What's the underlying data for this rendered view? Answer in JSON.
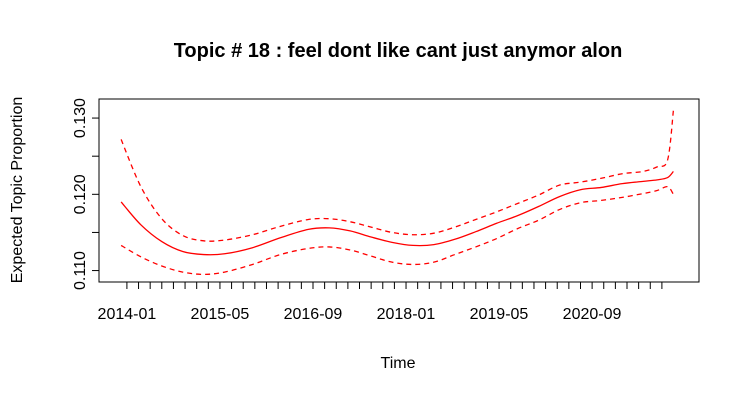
{
  "chart_data": {
    "type": "line",
    "title": "Topic # 18 :  feel dont like cant just anymor alon",
    "xlabel": "Time",
    "ylabel": "Expected Topic Proportion",
    "x_tick_labels": [
      "2014-01",
      "2015-05",
      "2016-09",
      "2018-01",
      "2019-05",
      "2020-09"
    ],
    "x_tick_positions": [
      2014.0,
      2015.333,
      2016.667,
      2018.0,
      2019.333,
      2020.667
    ],
    "y_ticks": [
      0.11,
      0.115,
      0.12,
      0.125,
      0.13
    ],
    "y_tick_labels": [
      "0.110",
      "",
      "0.120",
      "",
      "0.130"
    ],
    "xlim": [
      2013.6,
      2022.2
    ],
    "ylim": [
      0.1085,
      0.1325
    ],
    "minor_tick_interval_years": 0.1667,
    "minor_tick_start": 2014.0,
    "minor_tick_end": 2021.833,
    "colors": {
      "line": "#ff0000",
      "axis": "#000000"
    },
    "series": [
      {
        "role": "estimate",
        "line_style": "solid",
        "x": [
          2013.917,
          2014.2,
          2014.5,
          2014.8,
          2015.1,
          2015.4,
          2015.8,
          2016.2,
          2016.6,
          2016.9,
          2017.2,
          2017.5,
          2017.8,
          2018.1,
          2018.4,
          2018.7,
          2019.0,
          2019.3,
          2019.6,
          2019.9,
          2020.2,
          2020.5,
          2020.8,
          2021.1,
          2021.4,
          2021.6,
          2021.75,
          2021.833
        ],
        "y": [
          0.119,
          0.116,
          0.1138,
          0.1125,
          0.1121,
          0.1122,
          0.113,
          0.1143,
          0.1154,
          0.1156,
          0.1152,
          0.1144,
          0.1137,
          0.1133,
          0.1134,
          0.1141,
          0.1151,
          0.1162,
          0.1172,
          0.1184,
          0.1197,
          0.1206,
          0.1209,
          0.1214,
          0.1217,
          0.1219,
          0.1222,
          0.123
        ]
      },
      {
        "role": "upper",
        "line_style": "dashed",
        "x": [
          2013.917,
          2014.2,
          2014.5,
          2014.8,
          2015.1,
          2015.4,
          2015.8,
          2016.2,
          2016.6,
          2016.9,
          2017.2,
          2017.5,
          2017.8,
          2018.1,
          2018.4,
          2018.7,
          2019.0,
          2019.3,
          2019.6,
          2019.9,
          2020.2,
          2020.5,
          2020.8,
          2021.1,
          2021.4,
          2021.6,
          2021.75,
          2021.833
        ],
        "y": [
          0.1272,
          0.121,
          0.1168,
          0.1146,
          0.1139,
          0.114,
          0.1147,
          0.1158,
          0.1167,
          0.1168,
          0.1164,
          0.1157,
          0.115,
          0.1147,
          0.1149,
          0.1157,
          0.1167,
          0.1177,
          0.1188,
          0.1199,
          0.1212,
          0.1216,
          0.1221,
          0.1227,
          0.123,
          0.1236,
          0.1245,
          0.131
        ]
      },
      {
        "role": "lower",
        "line_style": "dashed",
        "x": [
          2013.917,
          2014.2,
          2014.5,
          2014.8,
          2015.1,
          2015.4,
          2015.8,
          2016.2,
          2016.6,
          2016.9,
          2017.2,
          2017.5,
          2017.8,
          2018.1,
          2018.4,
          2018.7,
          2019.0,
          2019.3,
          2019.6,
          2019.9,
          2020.2,
          2020.5,
          2020.8,
          2021.1,
          2021.4,
          2021.6,
          2021.75,
          2021.833
        ],
        "y": [
          0.1133,
          0.1118,
          0.1106,
          0.1098,
          0.1095,
          0.1098,
          0.1108,
          0.1121,
          0.1129,
          0.1131,
          0.1127,
          0.1119,
          0.1111,
          0.1108,
          0.1111,
          0.1121,
          0.1131,
          0.1142,
          0.1155,
          0.1166,
          0.118,
          0.1189,
          0.1192,
          0.1196,
          0.1201,
          0.1205,
          0.121,
          0.12
        ]
      }
    ]
  }
}
